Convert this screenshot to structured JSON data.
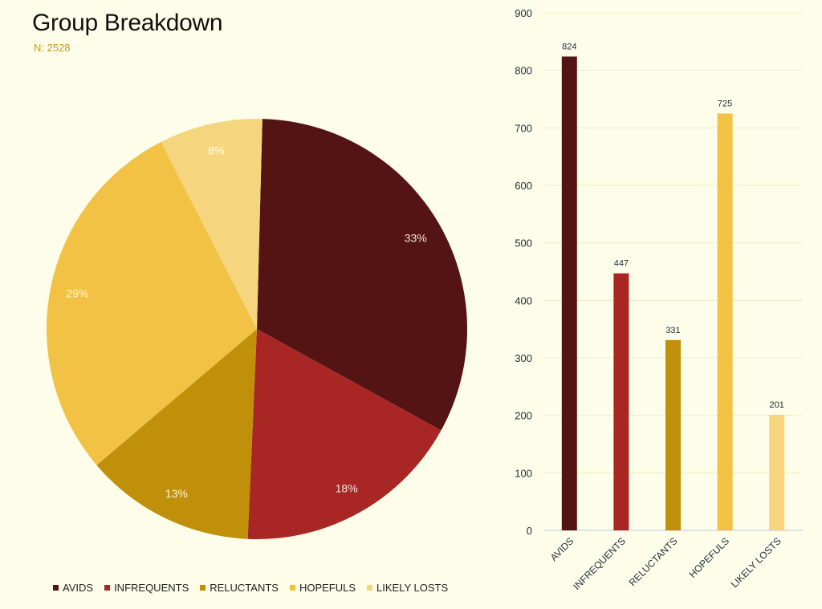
{
  "chart_data": [
    {
      "type": "pie",
      "title": "Group Breakdown",
      "subtitle": "N: 2528",
      "categories": [
        "AVIDS",
        "INFREQUENTS",
        "RELUCTANTS",
        "HOPEFULS",
        "LIKELY LOSTS"
      ],
      "values": [
        824,
        447,
        331,
        725,
        201
      ],
      "labels": [
        "33%",
        "18%",
        "13%",
        "29%",
        "8%"
      ],
      "legend": "bottom"
    },
    {
      "type": "bar",
      "categories": [
        "AVIDS",
        "INFREQUENTS",
        "RELUCTANTS",
        "HOPEFULS",
        "LIKELY LOSTS"
      ],
      "values": [
        824,
        447,
        331,
        725,
        201
      ],
      "ylim": [
        0,
        900
      ],
      "yticks": [
        0,
        100,
        200,
        300,
        400,
        500,
        600,
        700,
        800,
        900
      ],
      "grid": true,
      "data_labels": true
    }
  ],
  "colors": [
    "#541414",
    "#a82623",
    "#c0900a",
    "#f1c243",
    "#f5d57e"
  ],
  "label_colors": [
    "#f3e7d0",
    "#fbe5dc",
    "#fff4d8",
    "#fff5d6",
    "#ffffff"
  ]
}
